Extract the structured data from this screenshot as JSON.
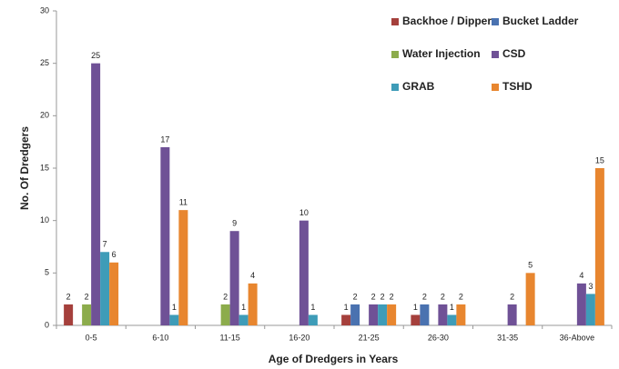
{
  "chart_data": {
    "type": "bar",
    "xlabel": "Age of Dredgers in Years",
    "ylabel": "No. Of Dredgers",
    "categories": [
      "0-5",
      "6-10",
      "11-15",
      "16-20",
      "21-25",
      "26-30",
      "31-35",
      "36-Above"
    ],
    "series": [
      {
        "name": "Backhoe / Dipper",
        "color": "#a5403c",
        "values": [
          2,
          null,
          null,
          null,
          1,
          1,
          null,
          null
        ]
      },
      {
        "name": "Bucket Ladder",
        "color": "#4a72b0",
        "values": [
          null,
          null,
          null,
          null,
          2,
          2,
          null,
          null
        ]
      },
      {
        "name": "Water Injection",
        "color": "#8cac4c",
        "values": [
          2,
          null,
          2,
          null,
          null,
          null,
          null,
          null
        ]
      },
      {
        "name": "CSD",
        "color": "#6f5196",
        "values": [
          25,
          17,
          9,
          10,
          2,
          2,
          2,
          4
        ]
      },
      {
        "name": "GRAB",
        "color": "#3e9cb8",
        "values": [
          7,
          1,
          1,
          1,
          2,
          1,
          null,
          3
        ]
      },
      {
        "name": "TSHD",
        "color": "#e8862f",
        "values": [
          6,
          11,
          4,
          null,
          2,
          2,
          5,
          15
        ]
      }
    ],
    "ylim": [
      0,
      30
    ],
    "yticks": [
      0,
      5,
      10,
      15,
      20,
      25,
      30
    ],
    "grid": false,
    "legend": "top-right"
  }
}
